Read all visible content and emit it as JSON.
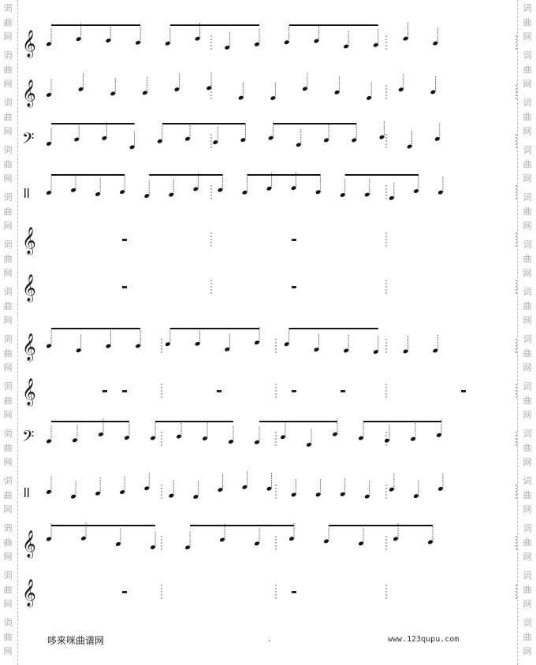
{
  "watermark": {
    "chars": [
      "词",
      "曲",
      "网"
    ]
  },
  "footer": {
    "site_name": "哆来咪曲谱网",
    "dot": ".",
    "url": "www.123qupu.com"
  },
  "score": {
    "systems": [
      {
        "staves": [
          "treble",
          "treble",
          "bass",
          "percussion",
          "treble",
          "treble"
        ]
      },
      {
        "staves": [
          "treble",
          "treble",
          "bass",
          "percussion",
          "treble",
          "treble"
        ]
      }
    ]
  }
}
